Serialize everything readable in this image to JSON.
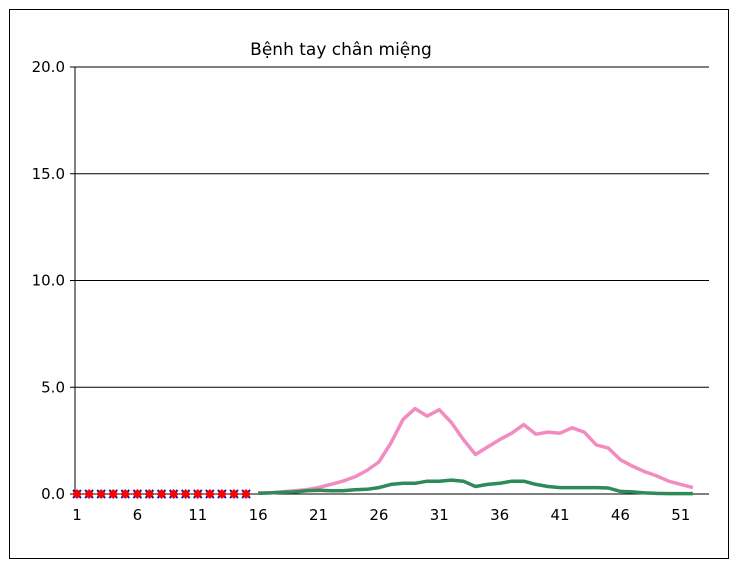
{
  "chart_data": {
    "type": "line",
    "title": "Bệnh tay chân miệng",
    "xlabel": "",
    "ylabel": "",
    "ylim": [
      0,
      20
    ],
    "xlim": [
      1,
      53
    ],
    "y_ticks": [
      "0.0",
      "5.0",
      "10.0",
      "15.0",
      "20.0"
    ],
    "x_ticks": [
      "1",
      "6",
      "11",
      "16",
      "21",
      "26",
      "31",
      "36",
      "41",
      "46",
      "51"
    ],
    "grid": "horizontal",
    "legend": "none",
    "series": [
      {
        "color": "#f28cc0",
        "marker": "none",
        "x": [
          16,
          17,
          18,
          19,
          20,
          21,
          22,
          23,
          24,
          25,
          26,
          27,
          28,
          29,
          30,
          31,
          32,
          33,
          34,
          35,
          36,
          37,
          38,
          39,
          40,
          41,
          42,
          43,
          44,
          45,
          46,
          47,
          48,
          49,
          50,
          51,
          52
        ],
        "values": [
          0.05,
          0.05,
          0.1,
          0.15,
          0.2,
          0.3,
          0.45,
          0.6,
          0.8,
          1.1,
          1.5,
          2.4,
          3.5,
          4.0,
          3.65,
          3.95,
          3.35,
          2.55,
          1.85,
          2.2,
          2.55,
          2.85,
          3.25,
          2.8,
          2.9,
          2.85,
          3.1,
          2.9,
          2.3,
          2.15,
          1.6,
          1.3,
          1.05,
          0.85,
          0.6,
          0.45,
          0.3
        ]
      },
      {
        "color": "#2e8b57",
        "marker": "none",
        "x": [
          16,
          17,
          18,
          19,
          20,
          21,
          22,
          23,
          24,
          25,
          26,
          27,
          28,
          29,
          30,
          31,
          32,
          33,
          34,
          35,
          36,
          37,
          38,
          39,
          40,
          41,
          42,
          43,
          44,
          45,
          46,
          47,
          48,
          49,
          50,
          51,
          52
        ],
        "values": [
          0.03,
          0.05,
          0.08,
          0.1,
          0.15,
          0.18,
          0.15,
          0.15,
          0.2,
          0.22,
          0.3,
          0.45,
          0.5,
          0.5,
          0.6,
          0.6,
          0.65,
          0.6,
          0.35,
          0.45,
          0.5,
          0.6,
          0.6,
          0.45,
          0.35,
          0.3,
          0.3,
          0.3,
          0.3,
          0.28,
          0.12,
          0.1,
          0.05,
          0.03,
          0.02,
          0.02,
          0.02
        ]
      },
      {
        "color": "#1a1aa0",
        "marker": "x",
        "x": [
          1,
          2,
          3,
          4,
          5,
          6,
          7,
          8,
          9,
          10,
          11,
          12,
          13,
          14,
          15
        ],
        "values": [
          0,
          0,
          0,
          0,
          0,
          0,
          0,
          0,
          0,
          0,
          0,
          0,
          0,
          0,
          0
        ]
      },
      {
        "color": "#ff0000",
        "marker": "diamond",
        "x": [
          1,
          2,
          3,
          4,
          5,
          6,
          7,
          8,
          9,
          10,
          11,
          12,
          13,
          14,
          15
        ],
        "values": [
          0,
          0,
          0,
          0,
          0,
          0,
          0,
          0,
          0,
          0,
          0,
          0,
          0,
          0,
          0
        ]
      }
    ]
  }
}
